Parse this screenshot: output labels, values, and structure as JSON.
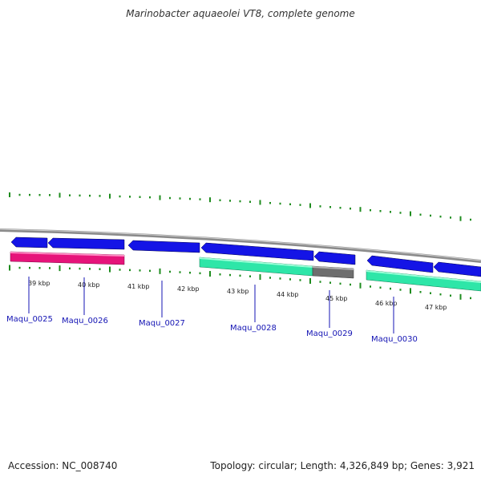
{
  "title": "Marinobacter aquaeolei VT8, complete genome",
  "footer": {
    "accession": "Accession: NC_008740",
    "summary": "Topology: circular; Length: 4,326,849 bp; Genes: 3,921"
  },
  "colors": {
    "backbone": "#8a8a8a",
    "forward_gene": "#1414e6",
    "tick": "#1e8c1e",
    "label": "#1414b4",
    "track_pink": "#e6147a",
    "track_green": "#2ee6a8",
    "track_gray": "#6e6e6e"
  },
  "kbp_labels": [
    {
      "pos": 39,
      "text": "39 kbp"
    },
    {
      "pos": 40,
      "text": "40 kbp"
    },
    {
      "pos": 41,
      "text": "41 kbp"
    },
    {
      "pos": 42,
      "text": "42 kbp"
    },
    {
      "pos": 43,
      "text": "43 kbp"
    },
    {
      "pos": 44,
      "text": "44 kbp"
    },
    {
      "pos": 45,
      "text": "45 kbp"
    },
    {
      "pos": 46,
      "text": "46 kbp"
    },
    {
      "pos": 47,
      "text": "47 kbp"
    }
  ],
  "gene_labels": [
    {
      "text": "Maqu_0025"
    },
    {
      "text": "Maqu_0026"
    },
    {
      "text": "Maqu_0027"
    },
    {
      "text": "Maqu_0028"
    },
    {
      "text": "Maqu_0029"
    },
    {
      "text": "Maqu_0030"
    }
  ]
}
